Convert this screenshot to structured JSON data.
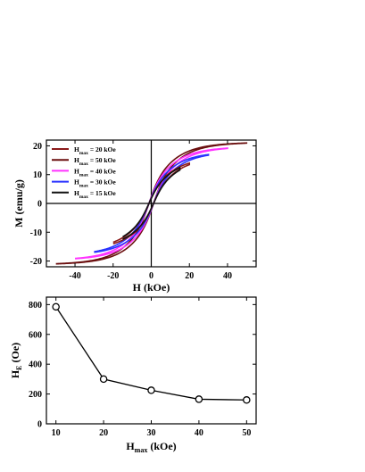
{
  "chart_data": [
    {
      "type": "line",
      "xlabel": "H (kOe)",
      "ylabel": "M (emu/g)",
      "xlim": [
        -55,
        55
      ],
      "ylim": [
        -22,
        22
      ],
      "xticks": [
        -40,
        -20,
        0,
        20,
        40
      ],
      "yticks": [
        -20,
        -10,
        0,
        10,
        20
      ],
      "zero_lines": true,
      "legend_position": "top-left",
      "series": [
        {
          "name": "H",
          "subscript": "max",
          "suffix": " = 20 kOe",
          "hmax": 20,
          "ms": 14.0,
          "color": "#8b1a1a",
          "points": [
            [
              -20,
              -14.0
            ],
            [
              -5,
              -7.6
            ],
            [
              0,
              -1.3
            ],
            [
              5,
              7.6
            ],
            [
              20,
              14.0
            ]
          ]
        },
        {
          "name": "H",
          "subscript": "max",
          "suffix": " = 50 kOe",
          "hmax": 50,
          "ms": 21.0,
          "color": "#6b0f0f",
          "points": [
            [
              -50,
              -21.0
            ],
            [
              -30,
              -17.3
            ],
            [
              0,
              -1.3
            ],
            [
              30,
              17.3
            ],
            [
              50,
              21.0
            ]
          ]
        },
        {
          "name": "H",
          "subscript": "max",
          "suffix": " = 40 kOe",
          "hmax": 40,
          "ms": 19.2,
          "color": "#ff33ff",
          "points": [
            [
              -40,
              -19.2
            ],
            [
              -20,
              -14.0
            ],
            [
              0,
              -1.3
            ],
            [
              20,
              14.0
            ],
            [
              40,
              19.2
            ]
          ]
        },
        {
          "name": "H",
          "subscript": "max",
          "suffix": " = 30 kOe",
          "hmax": 30,
          "ms": 17.0,
          "color": "#2a33ff",
          "points": [
            [
              -30,
              -17.0
            ],
            [
              -10,
              -10.5
            ],
            [
              0,
              -1.3
            ],
            [
              10,
              10.5
            ],
            [
              30,
              17.0
            ]
          ]
        },
        {
          "name": "H",
          "subscript": "max",
          "suffix": " = 15 kOe",
          "hmax": 15,
          "ms": 12.4,
          "color": "#111111",
          "points": [
            [
              -15,
              -12.4
            ],
            [
              -5,
              -7.6
            ],
            [
              0,
              -1.3
            ],
            [
              5,
              7.6
            ],
            [
              15,
              12.4
            ]
          ]
        }
      ]
    },
    {
      "type": "line",
      "xlabel": "H",
      "xlabel_sub": "max",
      "xlabel_suffix": " (kOe)",
      "ylabel": "H",
      "ylabel_sub": "E",
      "ylabel_suffix": " (Oe)",
      "xlim": [
        8,
        52
      ],
      "ylim": [
        0,
        850
      ],
      "xticks": [
        10,
        20,
        30,
        40,
        50
      ],
      "yticks": [
        0,
        200,
        400,
        600,
        800
      ],
      "series": [
        {
          "x": [
            10,
            20,
            30,
            40,
            50
          ],
          "values": [
            785,
            300,
            225,
            165,
            160
          ]
        }
      ]
    }
  ]
}
